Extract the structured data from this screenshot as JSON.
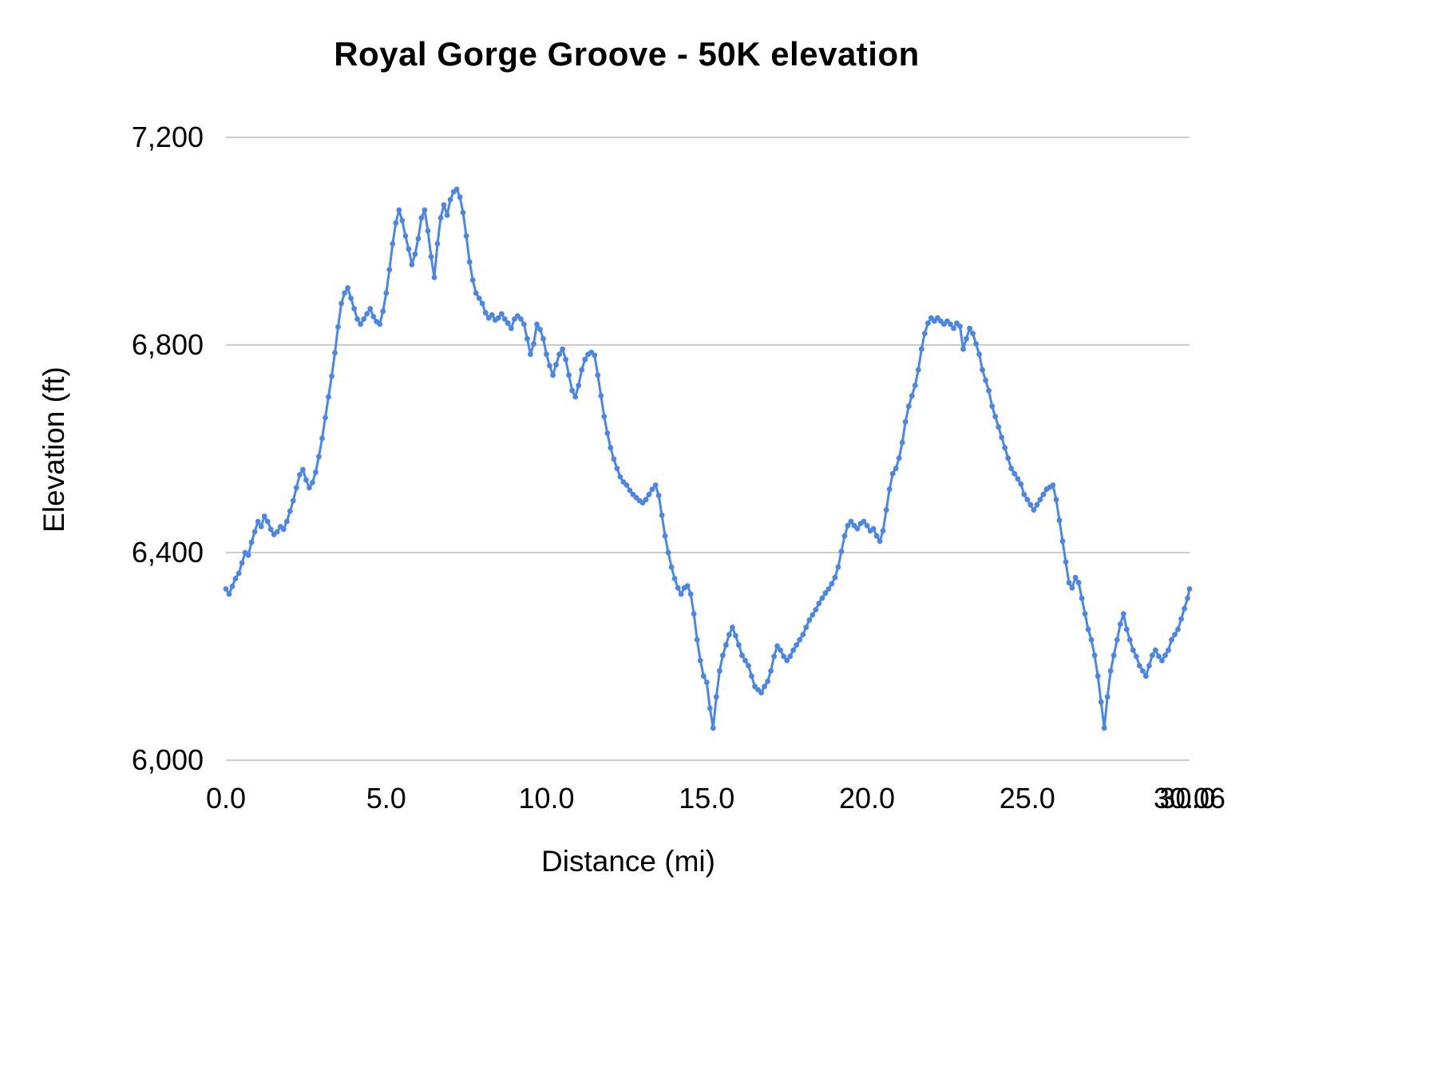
{
  "chart": {
    "title": "Royal Gorge Groove - 50K elevation",
    "x_axis_title": "Distance (mi)",
    "y_axis_title": "Elevation (ft)"
  },
  "chart_data": {
    "type": "line",
    "title": "Royal Gorge Groove - 50K elevation",
    "xlabel": "Distance (mi)",
    "ylabel": "Elevation (ft)",
    "xlim": [
      0,
      30.06
    ],
    "ylim": [
      6000,
      7200
    ],
    "grid": "horizontal-only",
    "legend": "none",
    "line_color": "#4a86e8",
    "grid_color": "#cccccc",
    "marker_radius": 3.4,
    "line_width": 3,
    "y_ticks": [
      {
        "v": 6000,
        "label": "6,000"
      },
      {
        "v": 6400,
        "label": "6,400"
      },
      {
        "v": 6800,
        "label": "6,800"
      },
      {
        "v": 7200,
        "label": "7,200"
      }
    ],
    "x_ticks": [
      {
        "v": 0,
        "label": "0.0"
      },
      {
        "v": 5,
        "label": "5.0"
      },
      {
        "v": 10,
        "label": "10.0"
      },
      {
        "v": 15,
        "label": "15.0"
      },
      {
        "v": 20,
        "label": "20.0"
      },
      {
        "v": 25,
        "label": "25.0"
      },
      {
        "v": 30,
        "label": "30.0"
      },
      {
        "v": 30.06,
        "label": "30.06"
      }
    ],
    "series_name": "Elevation",
    "points": [
      [
        0.0,
        6330
      ],
      [
        0.1,
        6320
      ],
      [
        0.2,
        6335
      ],
      [
        0.3,
        6350
      ],
      [
        0.4,
        6360
      ],
      [
        0.5,
        6380
      ],
      [
        0.6,
        6400
      ],
      [
        0.7,
        6395
      ],
      [
        0.8,
        6420
      ],
      [
        0.9,
        6440
      ],
      [
        1.0,
        6460
      ],
      [
        1.1,
        6450
      ],
      [
        1.2,
        6470
      ],
      [
        1.3,
        6460
      ],
      [
        1.4,
        6445
      ],
      [
        1.5,
        6435
      ],
      [
        1.6,
        6440
      ],
      [
        1.7,
        6450
      ],
      [
        1.8,
        6445
      ],
      [
        1.9,
        6460
      ],
      [
        2.0,
        6480
      ],
      [
        2.1,
        6500
      ],
      [
        2.2,
        6525
      ],
      [
        2.3,
        6550
      ],
      [
        2.4,
        6560
      ],
      [
        2.5,
        6540
      ],
      [
        2.6,
        6525
      ],
      [
        2.7,
        6535
      ],
      [
        2.8,
        6555
      ],
      [
        2.9,
        6585
      ],
      [
        3.0,
        6620
      ],
      [
        3.1,
        6660
      ],
      [
        3.2,
        6700
      ],
      [
        3.3,
        6740
      ],
      [
        3.4,
        6785
      ],
      [
        3.5,
        6835
      ],
      [
        3.6,
        6880
      ],
      [
        3.7,
        6900
      ],
      [
        3.8,
        6910
      ],
      [
        3.9,
        6890
      ],
      [
        4.0,
        6870
      ],
      [
        4.1,
        6850
      ],
      [
        4.2,
        6840
      ],
      [
        4.3,
        6850
      ],
      [
        4.4,
        6860
      ],
      [
        4.5,
        6870
      ],
      [
        4.6,
        6855
      ],
      [
        4.7,
        6845
      ],
      [
        4.8,
        6840
      ],
      [
        4.9,
        6865
      ],
      [
        5.0,
        6900
      ],
      [
        5.1,
        6945
      ],
      [
        5.2,
        6995
      ],
      [
        5.3,
        7035
      ],
      [
        5.4,
        7060
      ],
      [
        5.5,
        7040
      ],
      [
        5.6,
        7010
      ],
      [
        5.7,
        6985
      ],
      [
        5.8,
        6955
      ],
      [
        5.9,
        6975
      ],
      [
        6.0,
        7005
      ],
      [
        6.1,
        7045
      ],
      [
        6.2,
        7060
      ],
      [
        6.3,
        7020
      ],
      [
        6.4,
        6970
      ],
      [
        6.5,
        6930
      ],
      [
        6.6,
        6995
      ],
      [
        6.7,
        7045
      ],
      [
        6.8,
        7070
      ],
      [
        6.9,
        7050
      ],
      [
        7.0,
        7080
      ],
      [
        7.1,
        7095
      ],
      [
        7.2,
        7100
      ],
      [
        7.3,
        7085
      ],
      [
        7.4,
        7055
      ],
      [
        7.5,
        7010
      ],
      [
        7.6,
        6960
      ],
      [
        7.7,
        6925
      ],
      [
        7.8,
        6900
      ],
      [
        7.9,
        6890
      ],
      [
        8.0,
        6880
      ],
      [
        8.1,
        6862
      ],
      [
        8.2,
        6852
      ],
      [
        8.3,
        6858
      ],
      [
        8.4,
        6848
      ],
      [
        8.5,
        6852
      ],
      [
        8.6,
        6860
      ],
      [
        8.7,
        6850
      ],
      [
        8.8,
        6842
      ],
      [
        8.9,
        6832
      ],
      [
        9.0,
        6850
      ],
      [
        9.1,
        6856
      ],
      [
        9.2,
        6850
      ],
      [
        9.3,
        6840
      ],
      [
        9.4,
        6812
      ],
      [
        9.5,
        6782
      ],
      [
        9.6,
        6802
      ],
      [
        9.7,
        6840
      ],
      [
        9.8,
        6830
      ],
      [
        9.9,
        6812
      ],
      [
        10.0,
        6782
      ],
      [
        10.1,
        6760
      ],
      [
        10.2,
        6742
      ],
      [
        10.3,
        6762
      ],
      [
        10.4,
        6782
      ],
      [
        10.5,
        6792
      ],
      [
        10.6,
        6772
      ],
      [
        10.7,
        6742
      ],
      [
        10.8,
        6712
      ],
      [
        10.9,
        6700
      ],
      [
        11.0,
        6722
      ],
      [
        11.1,
        6752
      ],
      [
        11.2,
        6772
      ],
      [
        11.3,
        6782
      ],
      [
        11.4,
        6786
      ],
      [
        11.5,
        6780
      ],
      [
        11.6,
        6742
      ],
      [
        11.7,
        6702
      ],
      [
        11.8,
        6662
      ],
      [
        11.9,
        6630
      ],
      [
        12.0,
        6602
      ],
      [
        12.1,
        6580
      ],
      [
        12.2,
        6562
      ],
      [
        12.3,
        6546
      ],
      [
        12.4,
        6536
      ],
      [
        12.5,
        6530
      ],
      [
        12.6,
        6520
      ],
      [
        12.7,
        6512
      ],
      [
        12.8,
        6506
      ],
      [
        12.9,
        6500
      ],
      [
        13.0,
        6496
      ],
      [
        13.1,
        6502
      ],
      [
        13.2,
        6512
      ],
      [
        13.3,
        6522
      ],
      [
        13.4,
        6530
      ],
      [
        13.5,
        6510
      ],
      [
        13.6,
        6472
      ],
      [
        13.7,
        6432
      ],
      [
        13.8,
        6400
      ],
      [
        13.9,
        6372
      ],
      [
        14.0,
        6350
      ],
      [
        14.1,
        6332
      ],
      [
        14.2,
        6320
      ],
      [
        14.3,
        6332
      ],
      [
        14.4,
        6336
      ],
      [
        14.5,
        6320
      ],
      [
        14.6,
        6282
      ],
      [
        14.7,
        6232
      ],
      [
        14.8,
        6192
      ],
      [
        14.9,
        6162
      ],
      [
        15.0,
        6150
      ],
      [
        15.1,
        6100
      ],
      [
        15.2,
        6062
      ],
      [
        15.3,
        6122
      ],
      [
        15.4,
        6172
      ],
      [
        15.5,
        6202
      ],
      [
        15.6,
        6222
      ],
      [
        15.7,
        6242
      ],
      [
        15.8,
        6256
      ],
      [
        15.9,
        6240
      ],
      [
        16.0,
        6222
      ],
      [
        16.1,
        6202
      ],
      [
        16.2,
        6192
      ],
      [
        16.3,
        6182
      ],
      [
        16.4,
        6162
      ],
      [
        16.5,
        6142
      ],
      [
        16.6,
        6136
      ],
      [
        16.7,
        6130
      ],
      [
        16.8,
        6142
      ],
      [
        16.9,
        6152
      ],
      [
        17.0,
        6172
      ],
      [
        17.1,
        6200
      ],
      [
        17.2,
        6220
      ],
      [
        17.3,
        6212
      ],
      [
        17.4,
        6200
      ],
      [
        17.5,
        6192
      ],
      [
        17.6,
        6200
      ],
      [
        17.7,
        6212
      ],
      [
        17.8,
        6222
      ],
      [
        17.9,
        6232
      ],
      [
        18.0,
        6242
      ],
      [
        18.1,
        6256
      ],
      [
        18.2,
        6270
      ],
      [
        18.3,
        6280
      ],
      [
        18.4,
        6290
      ],
      [
        18.5,
        6302
      ],
      [
        18.6,
        6312
      ],
      [
        18.7,
        6322
      ],
      [
        18.8,
        6330
      ],
      [
        18.9,
        6340
      ],
      [
        19.0,
        6352
      ],
      [
        19.1,
        6372
      ],
      [
        19.2,
        6402
      ],
      [
        19.3,
        6432
      ],
      [
        19.4,
        6452
      ],
      [
        19.5,
        6460
      ],
      [
        19.6,
        6452
      ],
      [
        19.7,
        6446
      ],
      [
        19.8,
        6456
      ],
      [
        19.9,
        6460
      ],
      [
        20.0,
        6452
      ],
      [
        20.1,
        6442
      ],
      [
        20.2,
        6446
      ],
      [
        20.3,
        6432
      ],
      [
        20.4,
        6422
      ],
      [
        20.5,
        6442
      ],
      [
        20.6,
        6482
      ],
      [
        20.7,
        6522
      ],
      [
        20.8,
        6552
      ],
      [
        20.9,
        6562
      ],
      [
        21.0,
        6582
      ],
      [
        21.1,
        6612
      ],
      [
        21.2,
        6652
      ],
      [
        21.3,
        6682
      ],
      [
        21.4,
        6702
      ],
      [
        21.5,
        6722
      ],
      [
        21.6,
        6752
      ],
      [
        21.7,
        6792
      ],
      [
        21.8,
        6822
      ],
      [
        21.9,
        6842
      ],
      [
        22.0,
        6852
      ],
      [
        22.1,
        6846
      ],
      [
        22.2,
        6852
      ],
      [
        22.3,
        6846
      ],
      [
        22.4,
        6840
      ],
      [
        22.5,
        6846
      ],
      [
        22.6,
        6840
      ],
      [
        22.7,
        6832
      ],
      [
        22.8,
        6842
      ],
      [
        22.9,
        6836
      ],
      [
        23.0,
        6792
      ],
      [
        23.1,
        6812
      ],
      [
        23.2,
        6832
      ],
      [
        23.3,
        6822
      ],
      [
        23.4,
        6802
      ],
      [
        23.5,
        6782
      ],
      [
        23.6,
        6752
      ],
      [
        23.7,
        6732
      ],
      [
        23.8,
        6712
      ],
      [
        23.9,
        6682
      ],
      [
        24.0,
        6662
      ],
      [
        24.1,
        6642
      ],
      [
        24.2,
        6622
      ],
      [
        24.3,
        6602
      ],
      [
        24.4,
        6582
      ],
      [
        24.5,
        6562
      ],
      [
        24.6,
        6552
      ],
      [
        24.7,
        6542
      ],
      [
        24.8,
        6532
      ],
      [
        24.9,
        6512
      ],
      [
        25.0,
        6502
      ],
      [
        25.1,
        6492
      ],
      [
        25.2,
        6482
      ],
      [
        25.3,
        6492
      ],
      [
        25.4,
        6502
      ],
      [
        25.5,
        6512
      ],
      [
        25.6,
        6522
      ],
      [
        25.7,
        6526
      ],
      [
        25.8,
        6530
      ],
      [
        25.9,
        6502
      ],
      [
        26.0,
        6462
      ],
      [
        26.1,
        6422
      ],
      [
        26.2,
        6382
      ],
      [
        26.3,
        6342
      ],
      [
        26.4,
        6332
      ],
      [
        26.5,
        6352
      ],
      [
        26.6,
        6342
      ],
      [
        26.7,
        6312
      ],
      [
        26.8,
        6282
      ],
      [
        26.9,
        6252
      ],
      [
        27.0,
        6232
      ],
      [
        27.1,
        6202
      ],
      [
        27.2,
        6162
      ],
      [
        27.3,
        6112
      ],
      [
        27.4,
        6062
      ],
      [
        27.5,
        6122
      ],
      [
        27.6,
        6172
      ],
      [
        27.7,
        6202
      ],
      [
        27.8,
        6232
      ],
      [
        27.9,
        6262
      ],
      [
        28.0,
        6282
      ],
      [
        28.1,
        6252
      ],
      [
        28.2,
        6232
      ],
      [
        28.3,
        6212
      ],
      [
        28.4,
        6200
      ],
      [
        28.5,
        6182
      ],
      [
        28.6,
        6172
      ],
      [
        28.7,
        6162
      ],
      [
        28.8,
        6182
      ],
      [
        28.9,
        6202
      ],
      [
        29.0,
        6212
      ],
      [
        29.1,
        6200
      ],
      [
        29.2,
        6192
      ],
      [
        29.3,
        6202
      ],
      [
        29.4,
        6212
      ],
      [
        29.5,
        6232
      ],
      [
        29.6,
        6242
      ],
      [
        29.7,
        6252
      ],
      [
        29.8,
        6272
      ],
      [
        29.9,
        6292
      ],
      [
        30.0,
        6312
      ],
      [
        30.06,
        6330
      ]
    ]
  }
}
